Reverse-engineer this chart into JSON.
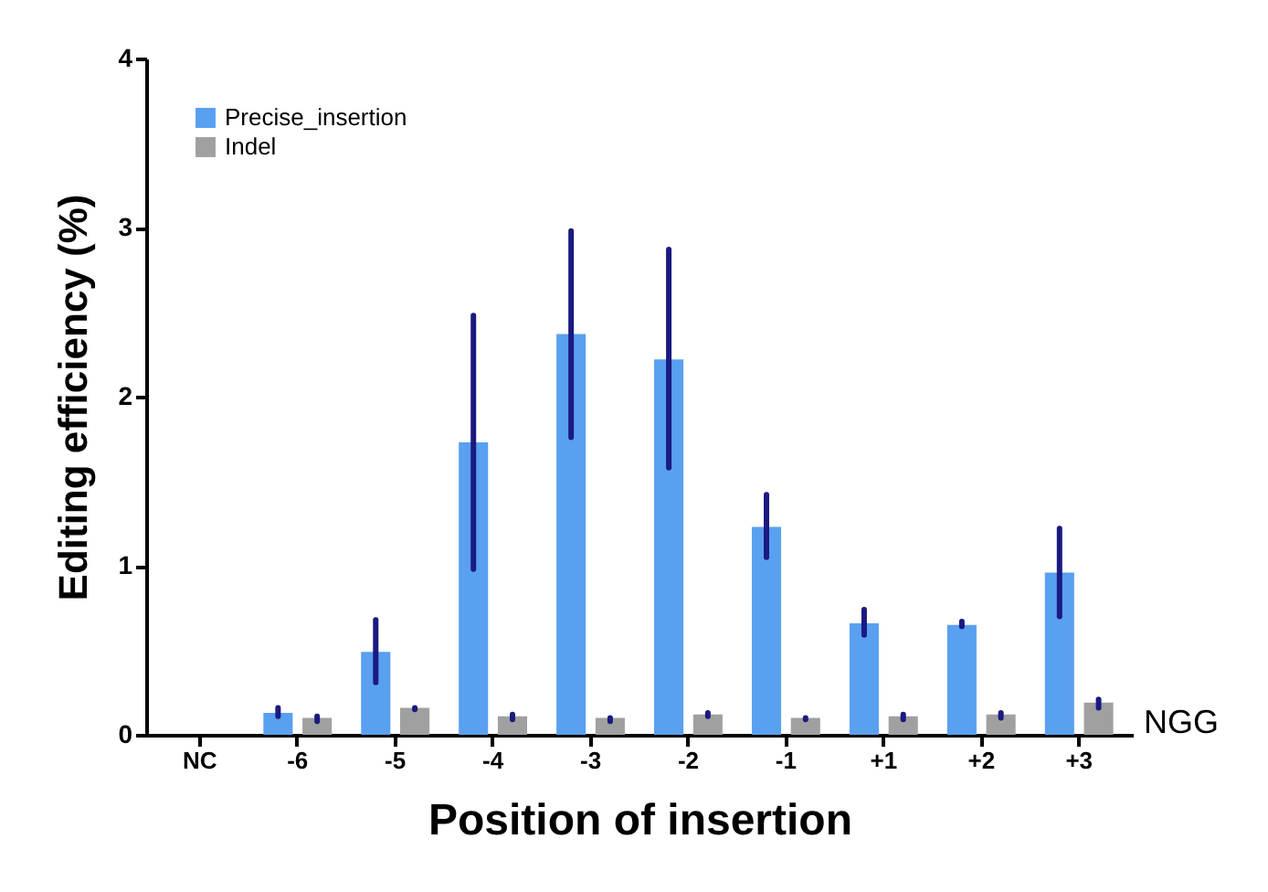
{
  "chart_data": {
    "type": "bar",
    "xlabel": "Position of insertion",
    "ylabel": "Editing efficiency (%)",
    "categories": [
      "NC",
      "-6",
      "-5",
      "-4",
      "-3",
      "-2",
      "-1",
      "+1",
      "+2",
      "+3"
    ],
    "series": [
      {
        "name": "Precise_insertion",
        "color": "#5aa0f0",
        "values": [
          0,
          0.13,
          0.49,
          1.73,
          2.37,
          2.22,
          1.23,
          0.66,
          0.65,
          0.96
        ],
        "errors": [
          null,
          [
            0.11,
            0.16
          ],
          [
            0.31,
            0.68
          ],
          [
            0.98,
            2.48
          ],
          [
            1.76,
            2.98
          ],
          [
            1.58,
            2.87
          ],
          [
            1.05,
            1.42
          ],
          [
            0.59,
            0.74
          ],
          [
            0.64,
            0.67
          ],
          [
            0.7,
            1.22
          ]
        ]
      },
      {
        "name": "Indel",
        "color": "#a0a0a0",
        "values": [
          0,
          0.1,
          0.16,
          0.11,
          0.1,
          0.12,
          0.1,
          0.11,
          0.12,
          0.19
        ],
        "errors": [
          null,
          [
            0.08,
            0.11
          ],
          [
            0.15,
            0.16
          ],
          [
            0.09,
            0.12
          ],
          [
            0.08,
            0.1
          ],
          [
            0.11,
            0.13
          ],
          [
            0.09,
            0.1
          ],
          [
            0.09,
            0.12
          ],
          [
            0.1,
            0.13
          ],
          [
            0.16,
            0.21
          ]
        ]
      }
    ],
    "ylim": [
      0,
      4
    ],
    "yticks": [
      0,
      1,
      2,
      3,
      4
    ],
    "grid": false,
    "legend": "top left",
    "annotations": [
      "NGG"
    ]
  }
}
